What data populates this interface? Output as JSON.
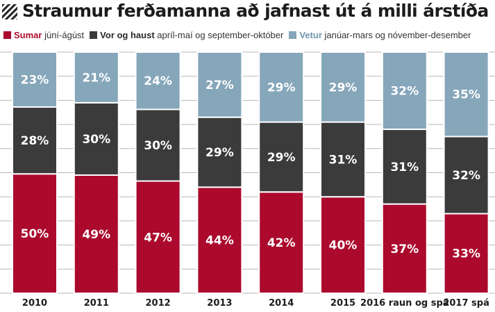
{
  "title": "Straumur ferðamanna að jafnast út á milli árstíða",
  "colors": {
    "summer": "#ab0a2d",
    "spring_autumn": "#3b3b3c",
    "winter": "#86a6ba",
    "grid": "#b7b7b7"
  },
  "legend": [
    {
      "name": "Sumar",
      "range": "júní-ágúst",
      "color": "#ab0a2d",
      "text_color": "#ab0a2d"
    },
    {
      "name": "Vor og haust",
      "range": "apríl-maí og september-október",
      "color": "#3b3b3c",
      "text_color": "#2a2a2a"
    },
    {
      "name": "Vetur",
      "range": "janúar-mars og nóvember-desember",
      "color": "#86a6ba",
      "text_color": "#6f94ad"
    }
  ],
  "chart_data": {
    "type": "bar",
    "stacked": true,
    "title": "Straumur ferðamanna að jafnast út á milli árstíða",
    "categories": [
      "2010",
      "2011",
      "2012",
      "2013",
      "2014",
      "2015",
      "2016 raun og spá",
      "2017 spá"
    ],
    "ylim": [
      0,
      100
    ],
    "grid": true,
    "legend_position": "top",
    "series": [
      {
        "name": "Sumar",
        "values": [
          50,
          49,
          47,
          44,
          42,
          40,
          37,
          33
        ],
        "labels": [
          "50%",
          "49%",
          "47%",
          "44%",
          "42%",
          "40%",
          "37%",
          "33%"
        ]
      },
      {
        "name": "Vor og haust",
        "values": [
          28,
          30,
          30,
          29,
          29,
          31,
          31,
          32
        ],
        "labels": [
          "28%",
          "30%",
          "30%",
          "29%",
          "29%",
          "31%",
          "31%",
          "32%"
        ]
      },
      {
        "name": "Vetur",
        "values": [
          23,
          21,
          24,
          27,
          29,
          29,
          32,
          35
        ],
        "labels": [
          "23%",
          "21%",
          "24%",
          "27%",
          "29%",
          "29%",
          "32%",
          "35%"
        ]
      }
    ]
  }
}
